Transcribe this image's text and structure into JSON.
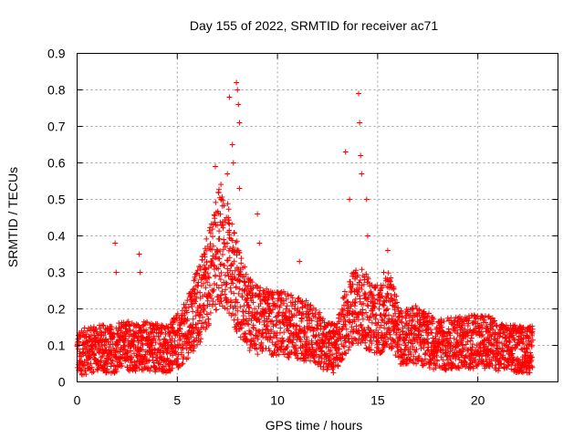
{
  "chart_data": {
    "type": "scatter",
    "title": "Day 155 of 2022, SRMTID for receiver ac71",
    "xlabel": "GPS time / hours",
    "ylabel": "SRMTID / TECUs",
    "xlim": [
      0,
      24
    ],
    "ylim": [
      0,
      0.9
    ],
    "xticks": [
      0,
      5,
      10,
      15,
      20
    ],
    "xtick_labels": [
      "0",
      "5",
      "10",
      "15",
      "20"
    ],
    "yticks": [
      0,
      0.1,
      0.2,
      0.3,
      0.4,
      0.5,
      0.6,
      0.7,
      0.8,
      0.9
    ],
    "ytick_labels": [
      "0",
      "0.1",
      "0.2",
      "0.3",
      "0.4",
      "0.5",
      "0.6",
      "0.7",
      "0.8",
      "0.9"
    ],
    "grid": true,
    "marker": "+",
    "color": "#ff0000",
    "x_range": [
      0,
      22.75
    ],
    "sample_interval_hours": 0.0083,
    "baseline_profile": {
      "x": [
        0,
        1,
        1.8,
        2.6,
        3.5,
        4.5,
        5.2,
        5.8,
        6.3,
        6.8,
        7.2,
        7.6,
        8.0,
        8.5,
        9.0,
        10.0,
        11.0,
        11.8,
        12.4,
        12.9,
        13.3,
        13.7,
        14.1,
        14.6,
        15.2,
        15.6,
        16.2,
        17.0,
        18.0,
        19.5,
        20.5,
        21.5,
        22.75
      ],
      "y": [
        0.08,
        0.09,
        0.09,
        0.1,
        0.1,
        0.09,
        0.12,
        0.18,
        0.24,
        0.33,
        0.38,
        0.33,
        0.26,
        0.19,
        0.17,
        0.16,
        0.15,
        0.13,
        0.1,
        0.09,
        0.15,
        0.2,
        0.22,
        0.18,
        0.17,
        0.2,
        0.12,
        0.13,
        0.1,
        0.11,
        0.11,
        0.09,
        0.09
      ]
    },
    "spikes": [
      {
        "x": 1.9,
        "y": 0.38
      },
      {
        "x": 1.95,
        "y": 0.3
      },
      {
        "x": 3.1,
        "y": 0.35
      },
      {
        "x": 3.15,
        "y": 0.3
      },
      {
        "x": 6.9,
        "y": 0.59
      },
      {
        "x": 7.2,
        "y": 0.5
      },
      {
        "x": 7.5,
        "y": 0.57
      },
      {
        "x": 7.6,
        "y": 0.78
      },
      {
        "x": 7.75,
        "y": 0.65
      },
      {
        "x": 7.8,
        "y": 0.6
      },
      {
        "x": 7.95,
        "y": 0.82
      },
      {
        "x": 8.0,
        "y": 0.8
      },
      {
        "x": 8.05,
        "y": 0.76
      },
      {
        "x": 8.1,
        "y": 0.71
      },
      {
        "x": 8.1,
        "y": 0.53
      },
      {
        "x": 9.0,
        "y": 0.46
      },
      {
        "x": 9.1,
        "y": 0.38
      },
      {
        "x": 11.1,
        "y": 0.33
      },
      {
        "x": 13.4,
        "y": 0.63
      },
      {
        "x": 13.6,
        "y": 0.5
      },
      {
        "x": 14.05,
        "y": 0.79
      },
      {
        "x": 14.1,
        "y": 0.71
      },
      {
        "x": 14.15,
        "y": 0.62
      },
      {
        "x": 14.2,
        "y": 0.57
      },
      {
        "x": 14.45,
        "y": 0.5
      },
      {
        "x": 14.5,
        "y": 0.4
      },
      {
        "x": 15.5,
        "y": 0.36
      },
      {
        "x": 15.3,
        "y": 0.3
      }
    ]
  }
}
